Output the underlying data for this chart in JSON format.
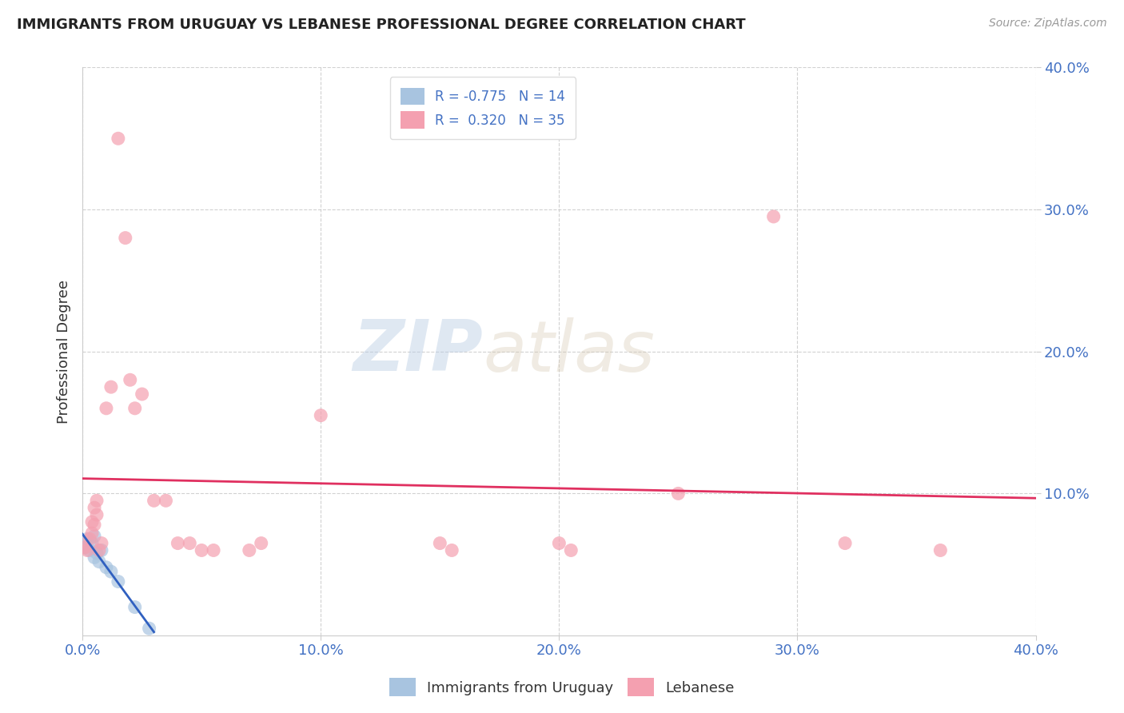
{
  "title": "IMMIGRANTS FROM URUGUAY VS LEBANESE PROFESSIONAL DEGREE CORRELATION CHART",
  "source": "Source: ZipAtlas.com",
  "ylabel": "Professional Degree",
  "legend_entries": [
    "Immigrants from Uruguay",
    "Lebanese"
  ],
  "r_uruguay": -0.775,
  "n_uruguay": 14,
  "r_lebanese": 0.32,
  "n_lebanese": 35,
  "xlim": [
    0.0,
    0.4
  ],
  "ylim": [
    0.0,
    0.4
  ],
  "xticks": [
    0.0,
    0.1,
    0.2,
    0.3,
    0.4
  ],
  "yticks": [
    0.1,
    0.2,
    0.3,
    0.4
  ],
  "xtick_labels": [
    "0.0%",
    "10.0%",
    "20.0%",
    "30.0%",
    "40.0%"
  ],
  "ytick_labels_right": [
    "10.0%",
    "20.0%",
    "30.0%",
    "40.0%"
  ],
  "color_uruguay": "#a8c4e0",
  "color_lebanese": "#f4a0b0",
  "line_color_uruguay": "#3060c0",
  "line_color_lebanese": "#e03060",
  "background_color": "#ffffff",
  "watermark_zip": "ZIP",
  "watermark_atlas": "atlas",
  "grid_color": "#cccccc",
  "scatter_uruguay": [
    [
      0.001,
      0.062
    ],
    [
      0.002,
      0.068
    ],
    [
      0.003,
      0.06
    ],
    [
      0.004,
      0.065
    ],
    [
      0.005,
      0.07
    ],
    [
      0.005,
      0.055
    ],
    [
      0.006,
      0.058
    ],
    [
      0.007,
      0.052
    ],
    [
      0.008,
      0.06
    ],
    [
      0.01,
      0.048
    ],
    [
      0.012,
      0.045
    ],
    [
      0.015,
      0.038
    ],
    [
      0.022,
      0.02
    ],
    [
      0.028,
      0.005
    ]
  ],
  "scatter_lebanese": [
    [
      0.001,
      0.062
    ],
    [
      0.002,
      0.06
    ],
    [
      0.003,
      0.068
    ],
    [
      0.004,
      0.072
    ],
    [
      0.004,
      0.08
    ],
    [
      0.005,
      0.078
    ],
    [
      0.005,
      0.09
    ],
    [
      0.006,
      0.085
    ],
    [
      0.006,
      0.095
    ],
    [
      0.007,
      0.06
    ],
    [
      0.008,
      0.065
    ],
    [
      0.01,
      0.16
    ],
    [
      0.012,
      0.175
    ],
    [
      0.015,
      0.35
    ],
    [
      0.018,
      0.28
    ],
    [
      0.02,
      0.18
    ],
    [
      0.022,
      0.16
    ],
    [
      0.025,
      0.17
    ],
    [
      0.03,
      0.095
    ],
    [
      0.035,
      0.095
    ],
    [
      0.04,
      0.065
    ],
    [
      0.045,
      0.065
    ],
    [
      0.05,
      0.06
    ],
    [
      0.055,
      0.06
    ],
    [
      0.07,
      0.06
    ],
    [
      0.075,
      0.065
    ],
    [
      0.1,
      0.155
    ],
    [
      0.15,
      0.065
    ],
    [
      0.155,
      0.06
    ],
    [
      0.2,
      0.065
    ],
    [
      0.205,
      0.06
    ],
    [
      0.25,
      0.1
    ],
    [
      0.29,
      0.295
    ],
    [
      0.32,
      0.065
    ],
    [
      0.36,
      0.06
    ]
  ]
}
